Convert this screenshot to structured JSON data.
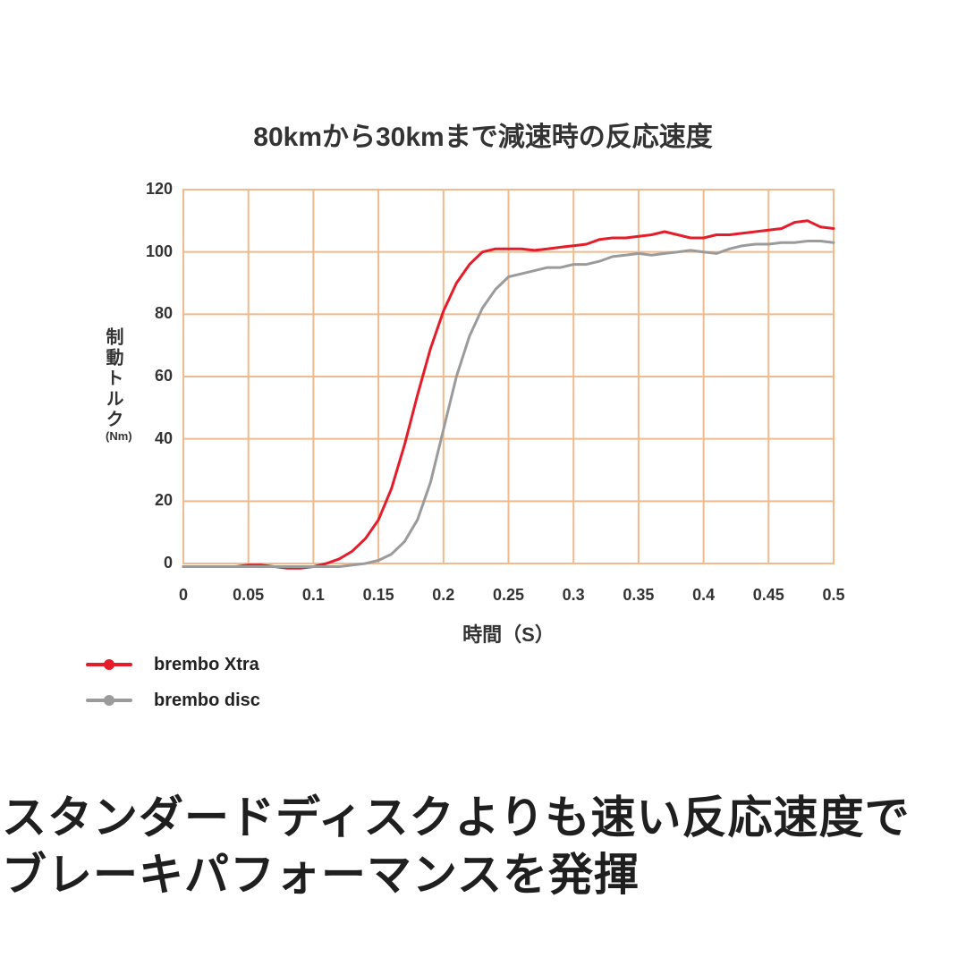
{
  "page": {
    "caption_line1": "スタンダードディスクよりも速い反応速度で",
    "caption_line2": "ブレーキパフォーマンスを発揮"
  },
  "chart_data": {
    "type": "line",
    "title": "80kmから30kmまで減速時の反応速度",
    "xlabel": "時間（S）",
    "ylabel": "制動トルク",
    "ylabel_unit": "(Nm)",
    "xlim": [
      0,
      0.5
    ],
    "ylim": [
      0,
      120
    ],
    "grid": true,
    "grid_color": "#f0ba8e",
    "legend_position": "bottom-left",
    "x_ticks": [
      0,
      0.05,
      0.1,
      0.15,
      0.2,
      0.25,
      0.3,
      0.35,
      0.4,
      0.45,
      0.5
    ],
    "x_tick_labels": [
      "0",
      "0.05",
      "0.1",
      "0.15",
      "0.2",
      "0.25",
      "0.3",
      "0.35",
      "0.4",
      "0.45",
      "0.5"
    ],
    "y_ticks": [
      0,
      20,
      40,
      60,
      80,
      100,
      120
    ],
    "y_tick_labels": [
      "0",
      "20",
      "40",
      "60",
      "80",
      "100",
      "120"
    ],
    "x": [
      0,
      0.01,
      0.02,
      0.03,
      0.04,
      0.05,
      0.06,
      0.07,
      0.08,
      0.09,
      0.1,
      0.11,
      0.12,
      0.13,
      0.14,
      0.15,
      0.16,
      0.17,
      0.18,
      0.19,
      0.2,
      0.21,
      0.22,
      0.23,
      0.24,
      0.25,
      0.26,
      0.27,
      0.28,
      0.29,
      0.3,
      0.31,
      0.32,
      0.33,
      0.34,
      0.35,
      0.36,
      0.37,
      0.38,
      0.39,
      0.4,
      0.41,
      0.42,
      0.43,
      0.44,
      0.45,
      0.46,
      0.47,
      0.48,
      0.49,
      0.5
    ],
    "series": [
      {
        "name": "brembo Xtra",
        "color": "#e51c2a",
        "values": [
          -1,
          -1,
          -1,
          -1,
          -1,
          -0.5,
          -0.5,
          -1,
          -1.5,
          -1.5,
          -1,
          0,
          1.5,
          4,
          8,
          14,
          24,
          38,
          54,
          69,
          81,
          90,
          96,
          100,
          101,
          101,
          101,
          100.5,
          101,
          101.5,
          102,
          102.5,
          104,
          104.5,
          104.5,
          105,
          105.5,
          106.5,
          105.5,
          104.5,
          104.5,
          105.5,
          105.5,
          106,
          106.5,
          107,
          107.5,
          109.5,
          110,
          108,
          107.5
        ]
      },
      {
        "name": "brembo disc",
        "color": "#9b9b9b",
        "values": [
          -1,
          -1,
          -1,
          -1,
          -1,
          -1,
          -1,
          -1,
          -1,
          -1,
          -1,
          -1,
          -1,
          -0.5,
          0,
          1,
          3,
          7,
          14,
          26,
          43,
          60,
          73,
          82,
          88,
          92,
          93,
          94,
          95,
          95,
          96,
          96,
          97,
          98.5,
          99,
          99.5,
          99,
          99.5,
          100,
          100.5,
          100,
          99.5,
          101,
          102,
          102.5,
          102.5,
          103,
          103,
          103.5,
          103.5,
          103
        ]
      }
    ]
  }
}
